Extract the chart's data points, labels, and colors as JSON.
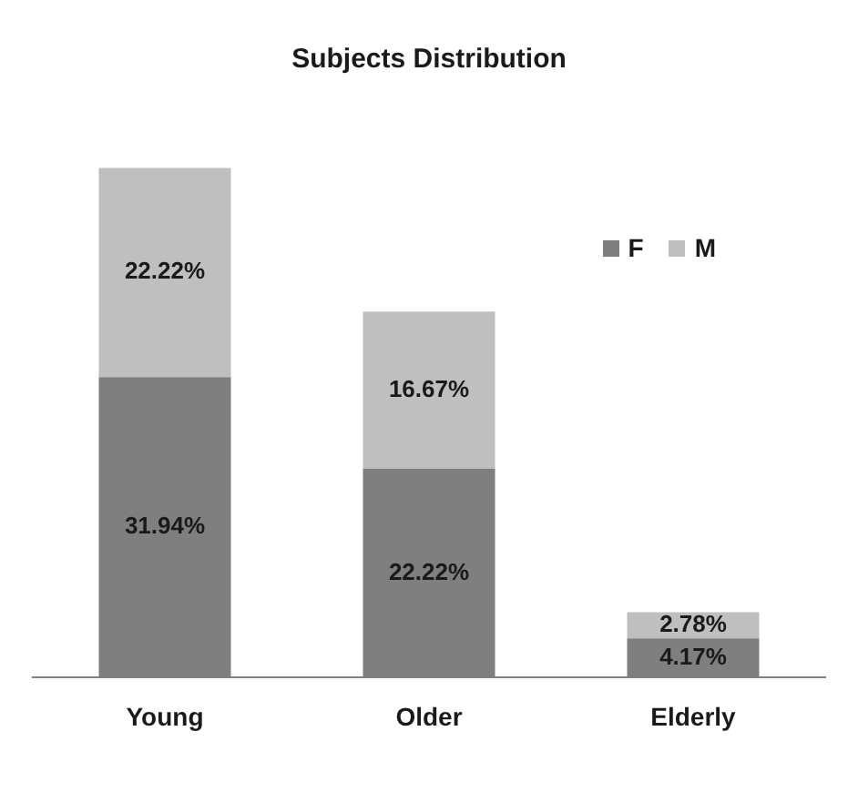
{
  "chart_data": {
    "type": "bar",
    "title": "Subjects Distribution",
    "categories": [
      "Young",
      "Older",
      "Elderly"
    ],
    "stacked": true,
    "legend": "top right",
    "grid": false,
    "tick_labels": "x",
    "series": [
      {
        "name": "F",
        "color": "#7f7f7f",
        "values": [
          31.94,
          22.22,
          4.17
        ],
        "value_labels": [
          "31.94%",
          "22.22%",
          "4.17%"
        ]
      },
      {
        "name": "M",
        "color": "#bfbfbf",
        "values": [
          22.22,
          16.67,
          2.78
        ],
        "value_labels": [
          "22.22%",
          "16.67%",
          "2.78%"
        ]
      }
    ]
  }
}
